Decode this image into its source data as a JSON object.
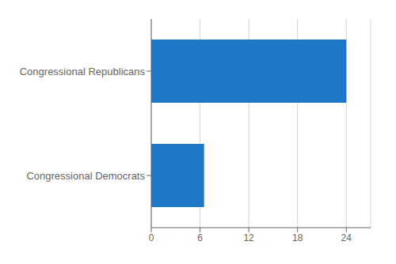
{
  "chart_data": {
    "type": "bar",
    "orientation": "horizontal",
    "categories": [
      "Congressional Democrats",
      "Congressional Republicans"
    ],
    "values": [
      6.5,
      24.0
    ],
    "color": "#1f78c7",
    "xlim": [
      0,
      27
    ],
    "xticks": [
      0,
      6,
      12,
      18,
      24
    ],
    "grid": true
  }
}
